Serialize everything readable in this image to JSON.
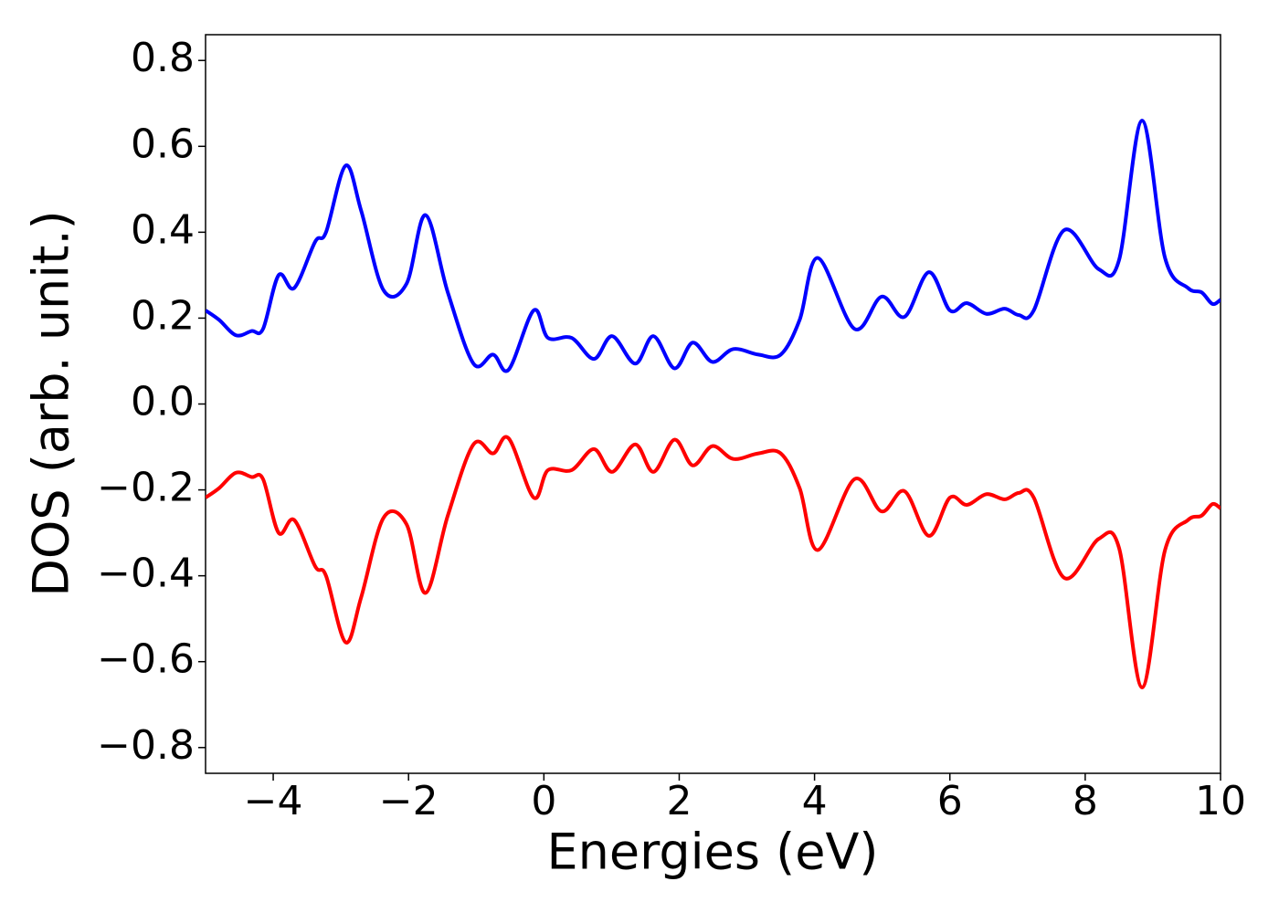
{
  "chart_data": {
    "type": "line",
    "xlabel": "Energies (eV)",
    "ylabel": "DOS (arb. unit.)",
    "x": [
      -5,
      -4.8,
      -4.55,
      -4.32,
      -4.15,
      -3.92,
      -3.69,
      -3.38,
      -3.22,
      -2.93,
      -2.7,
      -2.37,
      -2.03,
      -1.75,
      -1.42,
      -1.04,
      -0.75,
      -0.52,
      -0.15,
      0.06,
      0.41,
      0.74,
      1.01,
      1.35,
      1.62,
      1.93,
      2.2,
      2.49,
      2.8,
      3.17,
      3.5,
      3.78,
      4.05,
      4.59,
      4.99,
      5.33,
      5.69,
      6.0,
      6.25,
      6.54,
      6.81,
      7.02,
      7.24,
      7.69,
      8.2,
      8.5,
      8.84,
      9.18,
      9.52,
      9.72,
      9.88,
      10
    ],
    "series": [
      {
        "color": "#0000ff",
        "values": [
          0.218,
          0.196,
          0.16,
          0.17,
          0.175,
          0.3,
          0.27,
          0.378,
          0.4,
          0.555,
          0.45,
          0.265,
          0.28,
          0.44,
          0.26,
          0.094,
          0.115,
          0.08,
          0.218,
          0.154,
          0.154,
          0.105,
          0.158,
          0.094,
          0.158,
          0.083,
          0.143,
          0.098,
          0.128,
          0.115,
          0.115,
          0.196,
          0.34,
          0.175,
          0.25,
          0.203,
          0.307,
          0.218,
          0.235,
          0.21,
          0.222,
          0.207,
          0.218,
          0.405,
          0.314,
          0.335,
          0.66,
          0.34,
          0.27,
          0.26,
          0.233,
          0.243
        ]
      },
      {
        "color": "#ff0000",
        "values": [
          -0.218,
          -0.196,
          -0.16,
          -0.17,
          -0.175,
          -0.3,
          -0.27,
          -0.378,
          -0.4,
          -0.555,
          -0.45,
          -0.265,
          -0.28,
          -0.44,
          -0.26,
          -0.094,
          -0.115,
          -0.08,
          -0.218,
          -0.154,
          -0.154,
          -0.105,
          -0.158,
          -0.094,
          -0.158,
          -0.083,
          -0.143,
          -0.098,
          -0.128,
          -0.115,
          -0.115,
          -0.196,
          -0.34,
          -0.175,
          -0.25,
          -0.203,
          -0.307,
          -0.218,
          -0.235,
          -0.21,
          -0.222,
          -0.207,
          -0.218,
          -0.405,
          -0.314,
          -0.335,
          -0.66,
          -0.34,
          -0.27,
          -0.26,
          -0.233,
          -0.243
        ]
      }
    ],
    "xlim": [
      -5,
      10
    ],
    "xticks": [
      {
        "value": -4,
        "label": "−4"
      },
      {
        "value": -2,
        "label": "−2"
      },
      0,
      2,
      4,
      6,
      8,
      10
    ],
    "ylim": [
      -0.86,
      0.86
    ],
    "yticks": [
      {
        "value": -0.8,
        "label": "−0.8"
      },
      {
        "value": -0.6,
        "label": "−0.6"
      },
      {
        "value": -0.4,
        "label": "−0.4"
      },
      {
        "value": -0.2,
        "label": "−0.2"
      },
      {
        "value": 0,
        "label": "0.0"
      },
      0.2,
      0.4,
      0.6,
      0.8
    ],
    "grid": false
  }
}
